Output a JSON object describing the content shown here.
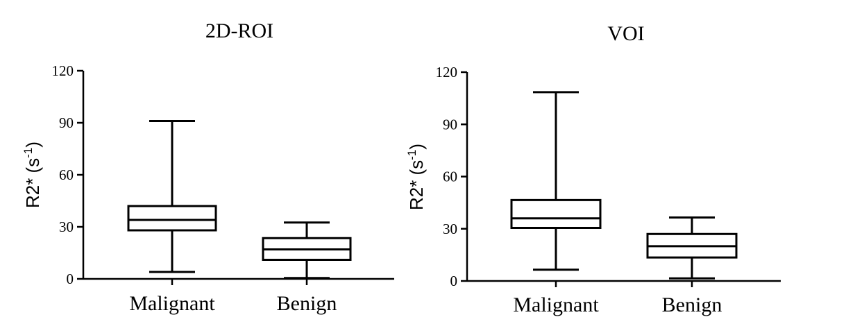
{
  "chart_data": [
    {
      "type": "box",
      "title": "2D-ROI",
      "ylabel": "R2* (s-1)",
      "ylabel_base": "R2* (s",
      "ylabel_sup": "-1",
      "ylabel_end": ")",
      "ylim": [
        0,
        120
      ],
      "yticks": [
        "0",
        "30",
        "60",
        "90",
        "120"
      ],
      "categories": [
        "Malignant",
        "Benign"
      ],
      "boxes": [
        {
          "category": "Malignant",
          "min": 4,
          "q1": 28,
          "median": 34,
          "q3": 42,
          "max": 91
        },
        {
          "category": "Benign",
          "min": 0.5,
          "q1": 11,
          "median": 17,
          "q3": 23.5,
          "max": 32.5
        }
      ]
    },
    {
      "type": "box",
      "title": "VOI",
      "ylabel": "R2* (s-1)",
      "ylabel_base": "R2* (s",
      "ylabel_sup": "-1",
      "ylabel_end": ")",
      "ylim": [
        0,
        120
      ],
      "yticks": [
        "0",
        "30",
        "60",
        "90",
        "120"
      ],
      "categories": [
        "Malignant",
        "Benign"
      ],
      "boxes": [
        {
          "category": "Malignant",
          "min": 6.5,
          "q1": 30.5,
          "median": 36,
          "q3": 46.5,
          "max": 108.5
        },
        {
          "category": "Benign",
          "min": 1.5,
          "q1": 13.5,
          "median": 20,
          "q3": 27,
          "max": 36.5
        }
      ]
    }
  ]
}
